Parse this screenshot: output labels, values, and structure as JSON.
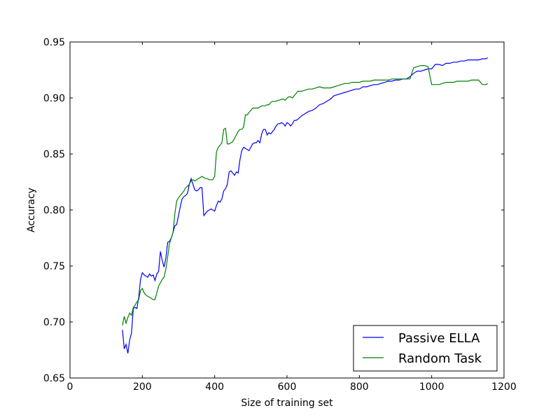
{
  "chart_data": {
    "type": "line",
    "title": "",
    "xlabel": "Size of training set",
    "ylabel": "Accuracy",
    "xlim": [
      0,
      1200
    ],
    "ylim": [
      0.65,
      0.95
    ],
    "xticks": [
      0,
      200,
      400,
      600,
      800,
      1000,
      1200
    ],
    "yticks": [
      0.65,
      0.7,
      0.75,
      0.8,
      0.85,
      0.9,
      0.95
    ],
    "xtick_labels": [
      "0",
      "200",
      "400",
      "600",
      "800",
      "1000",
      "1200"
    ],
    "ytick_labels": [
      "0.65",
      "0.70",
      "0.75",
      "0.80",
      "0.85",
      "0.90",
      "0.95"
    ],
    "grid": false,
    "legend_position": "lower-right",
    "series": [
      {
        "name": "Passive ELLA",
        "color": "#0000ff",
        "x": [
          145,
          150,
          155,
          160,
          165,
          170,
          175,
          180,
          185,
          190,
          195,
          200,
          205,
          210,
          215,
          220,
          225,
          230,
          235,
          240,
          245,
          250,
          255,
          260,
          265,
          270,
          275,
          280,
          285,
          290,
          295,
          300,
          305,
          310,
          315,
          320,
          325,
          330,
          335,
          340,
          345,
          350,
          355,
          360,
          365,
          370,
          375,
          380,
          385,
          390,
          395,
          400,
          405,
          410,
          415,
          420,
          425,
          430,
          435,
          440,
          445,
          450,
          455,
          460,
          465,
          470,
          475,
          480,
          485,
          490,
          495,
          500,
          505,
          510,
          515,
          520,
          525,
          530,
          535,
          540,
          545,
          550,
          555,
          560,
          565,
          570,
          575,
          580,
          585,
          590,
          595,
          600,
          605,
          610,
          615,
          620,
          625,
          630,
          640,
          650,
          660,
          670,
          680,
          690,
          700,
          710,
          720,
          730,
          740,
          750,
          760,
          770,
          780,
          790,
          800,
          810,
          820,
          830,
          840,
          850,
          860,
          870,
          880,
          890,
          900,
          910,
          920,
          930,
          940,
          950,
          960,
          970,
          980,
          990,
          1000,
          1010,
          1020,
          1030,
          1040,
          1050,
          1060,
          1070,
          1080,
          1090,
          1100,
          1110,
          1120,
          1130,
          1140,
          1150,
          1155
        ],
        "values": [
          0.693,
          0.676,
          0.68,
          0.672,
          0.684,
          0.69,
          0.712,
          0.713,
          0.712,
          0.722,
          0.738,
          0.744,
          0.742,
          0.741,
          0.74,
          0.743,
          0.741,
          0.742,
          0.737,
          0.743,
          0.745,
          0.763,
          0.755,
          0.749,
          0.757,
          0.771,
          0.772,
          0.775,
          0.78,
          0.786,
          0.787,
          0.795,
          0.803,
          0.81,
          0.812,
          0.813,
          0.815,
          0.823,
          0.828,
          0.823,
          0.818,
          0.817,
          0.818,
          0.82,
          0.82,
          0.795,
          0.797,
          0.799,
          0.8,
          0.801,
          0.8,
          0.799,
          0.804,
          0.808,
          0.807,
          0.81,
          0.817,
          0.819,
          0.823,
          0.834,
          0.835,
          0.833,
          0.831,
          0.834,
          0.833,
          0.845,
          0.853,
          0.856,
          0.855,
          0.854,
          0.853,
          0.856,
          0.859,
          0.86,
          0.86,
          0.862,
          0.86,
          0.868,
          0.872,
          0.872,
          0.867,
          0.869,
          0.868,
          0.87,
          0.872,
          0.875,
          0.877,
          0.877,
          0.878,
          0.877,
          0.875,
          0.878,
          0.877,
          0.875,
          0.877,
          0.88,
          0.88,
          0.881,
          0.884,
          0.886,
          0.888,
          0.889,
          0.891,
          0.894,
          0.895,
          0.897,
          0.899,
          0.902,
          0.903,
          0.904,
          0.905,
          0.906,
          0.907,
          0.908,
          0.908,
          0.91,
          0.91,
          0.911,
          0.912,
          0.912,
          0.913,
          0.914,
          0.915,
          0.915,
          0.916,
          0.916,
          0.917,
          0.917,
          0.919,
          0.922,
          0.924,
          0.924,
          0.925,
          0.926,
          0.926,
          0.93,
          0.93,
          0.929,
          0.931,
          0.931,
          0.932,
          0.932,
          0.933,
          0.933,
          0.934,
          0.934,
          0.934,
          0.934,
          0.935,
          0.935,
          0.936
        ]
      },
      {
        "name": "Random Task",
        "color": "#008000",
        "x": [
          145,
          150,
          155,
          160,
          165,
          170,
          175,
          180,
          185,
          190,
          195,
          200,
          205,
          210,
          215,
          220,
          225,
          230,
          235,
          240,
          245,
          250,
          255,
          260,
          265,
          270,
          275,
          280,
          285,
          290,
          295,
          300,
          305,
          310,
          315,
          320,
          325,
          330,
          335,
          340,
          345,
          350,
          355,
          360,
          365,
          370,
          375,
          380,
          385,
          390,
          395,
          400,
          405,
          410,
          415,
          420,
          425,
          430,
          435,
          440,
          445,
          450,
          455,
          460,
          465,
          470,
          475,
          480,
          485,
          490,
          495,
          500,
          505,
          510,
          515,
          520,
          525,
          530,
          535,
          540,
          545,
          550,
          555,
          560,
          565,
          570,
          575,
          580,
          585,
          590,
          595,
          600,
          605,
          610,
          615,
          620,
          625,
          630,
          640,
          650,
          660,
          670,
          680,
          690,
          700,
          710,
          720,
          730,
          740,
          750,
          760,
          770,
          780,
          790,
          800,
          810,
          820,
          830,
          840,
          850,
          860,
          870,
          880,
          890,
          900,
          910,
          920,
          930,
          940,
          950,
          960,
          970,
          980,
          990,
          1000,
          1010,
          1020,
          1030,
          1040,
          1050,
          1060,
          1070,
          1080,
          1090,
          1100,
          1110,
          1120,
          1130,
          1140,
          1150,
          1155
        ],
        "values": [
          0.697,
          0.705,
          0.699,
          0.704,
          0.708,
          0.706,
          0.713,
          0.715,
          0.718,
          0.72,
          0.728,
          0.73,
          0.726,
          0.724,
          0.723,
          0.722,
          0.721,
          0.72,
          0.72,
          0.726,
          0.732,
          0.735,
          0.738,
          0.74,
          0.747,
          0.758,
          0.77,
          0.775,
          0.78,
          0.797,
          0.808,
          0.811,
          0.813,
          0.815,
          0.817,
          0.82,
          0.821,
          0.823,
          0.826,
          0.827,
          0.826,
          0.827,
          0.828,
          0.829,
          0.83,
          0.829,
          0.828,
          0.828,
          0.827,
          0.827,
          0.827,
          0.83,
          0.852,
          0.856,
          0.858,
          0.86,
          0.872,
          0.873,
          0.859,
          0.859,
          0.86,
          0.861,
          0.864,
          0.867,
          0.87,
          0.872,
          0.872,
          0.874,
          0.885,
          0.885,
          0.887,
          0.889,
          0.891,
          0.891,
          0.891,
          0.891,
          0.892,
          0.893,
          0.893,
          0.893,
          0.894,
          0.894,
          0.896,
          0.897,
          0.897,
          0.897,
          0.898,
          0.898,
          0.899,
          0.899,
          0.898,
          0.9,
          0.901,
          0.901,
          0.9,
          0.902,
          0.904,
          0.906,
          0.906,
          0.907,
          0.908,
          0.908,
          0.909,
          0.91,
          0.909,
          0.909,
          0.909,
          0.91,
          0.911,
          0.912,
          0.913,
          0.913,
          0.914,
          0.914,
          0.914,
          0.915,
          0.915,
          0.915,
          0.916,
          0.916,
          0.916,
          0.916,
          0.916,
          0.917,
          0.917,
          0.917,
          0.917,
          0.917,
          0.917,
          0.927,
          0.928,
          0.929,
          0.929,
          0.928,
          0.912,
          0.912,
          0.912,
          0.913,
          0.914,
          0.914,
          0.914,
          0.915,
          0.915,
          0.915,
          0.915,
          0.916,
          0.916,
          0.916,
          0.912,
          0.912,
          0.913
        ]
      }
    ]
  }
}
